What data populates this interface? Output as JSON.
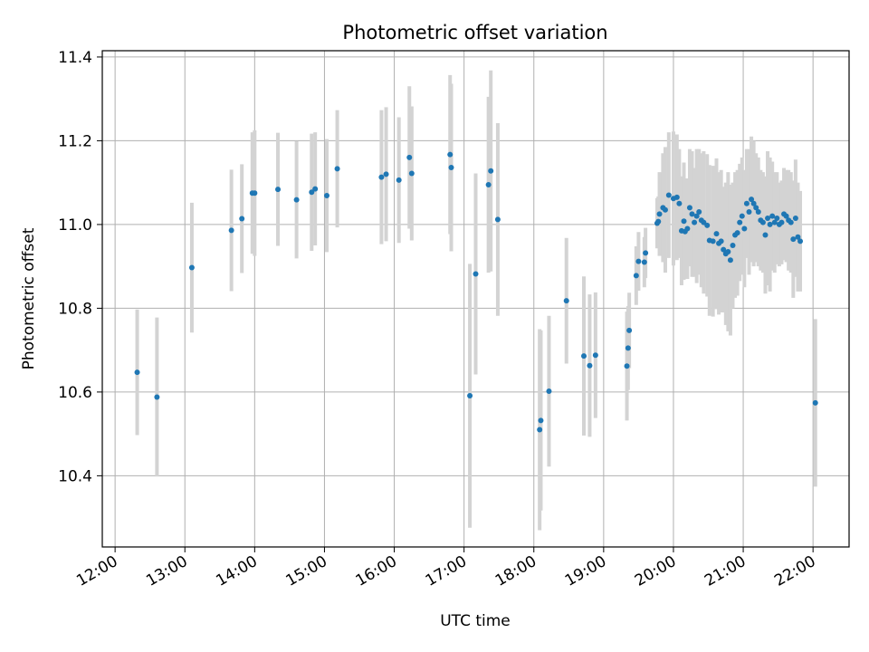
{
  "chart_data": {
    "type": "scatter",
    "title": "Photometric offset variation",
    "xlabel": "UTC time",
    "ylabel": "Photometric offset",
    "x_axis_type": "time",
    "x_tick_labels": [
      "12:00",
      "13:00",
      "14:00",
      "15:00",
      "16:00",
      "17:00",
      "18:00",
      "19:00",
      "20:00",
      "21:00",
      "22:00"
    ],
    "xlim": [
      "11:49",
      "22:31"
    ],
    "ylim": [
      10.23,
      11.415
    ],
    "yticks": [
      10.4,
      10.6,
      10.8,
      11.0,
      11.2,
      11.4
    ],
    "grid": true,
    "colors": {
      "point": "#1f77b4",
      "errorbar": "#d3d3d3",
      "grid": "#b0b0b0"
    },
    "series": [
      {
        "x": [
          "12:19",
          "12:36",
          "13:06",
          "13:40",
          "13:49",
          "13:58",
          "14:00",
          "14:20",
          "14:36",
          "14:49",
          "14:52",
          "15:02",
          "15:11",
          "15:49",
          "15:53",
          "16:04",
          "16:13",
          "16:15",
          "16:48",
          "16:49",
          "17:05",
          "17:10",
          "17:21",
          "17:23",
          "17:29",
          "18:05",
          "18:06",
          "18:13",
          "18:28",
          "18:43",
          "18:48",
          "18:53",
          "19:20",
          "19:21",
          "19:22",
          "19:28",
          "19:30",
          "19:35",
          "19:36",
          "19:46",
          "19:47",
          "19:48",
          "19:51",
          "19:53",
          "19:56",
          "20:00",
          "20:03",
          "20:05",
          "20:07",
          "20:09",
          "20:10",
          "20:12",
          "20:14",
          "20:16",
          "20:18",
          "20:20",
          "20:22",
          "20:24",
          "20:26",
          "20:29",
          "20:31",
          "20:34",
          "20:37",
          "20:39",
          "20:41",
          "20:43",
          "20:45",
          "20:47",
          "20:49",
          "20:51",
          "20:53",
          "20:55",
          "20:57",
          "20:59",
          "21:01",
          "21:03",
          "21:05",
          "21:07",
          "21:09",
          "21:11",
          "21:13",
          "21:15",
          "21:17",
          "21:19",
          "21:21",
          "21:23",
          "21:25",
          "21:27",
          "21:29",
          "21:31",
          "21:33",
          "21:35",
          "21:37",
          "21:39",
          "21:41",
          "21:43",
          "21:45",
          "21:47",
          "21:49",
          "22:02"
        ],
        "y": [
          10.647,
          10.588,
          10.897,
          10.986,
          11.014,
          11.075,
          11.075,
          11.084,
          11.059,
          11.077,
          11.085,
          11.069,
          11.133,
          11.113,
          11.12,
          11.106,
          11.16,
          11.122,
          11.167,
          11.136,
          10.591,
          10.882,
          11.095,
          11.128,
          11.012,
          10.51,
          10.532,
          10.602,
          10.818,
          10.686,
          10.663,
          10.688,
          10.662,
          10.705,
          10.747,
          10.878,
          10.912,
          10.91,
          10.932,
          11.003,
          11.007,
          11.025,
          11.04,
          11.035,
          11.07,
          11.062,
          11.065,
          11.05,
          10.985,
          11.008,
          10.983,
          10.99,
          11.04,
          11.025,
          11.005,
          11.02,
          11.03,
          11.01,
          11.005,
          10.998,
          10.962,
          10.96,
          10.978,
          10.955,
          10.96,
          10.94,
          10.93,
          10.935,
          10.915,
          10.95,
          10.975,
          10.98,
          11.005,
          11.02,
          10.99,
          11.05,
          11.03,
          11.06,
          11.05,
          11.04,
          11.03,
          11.01,
          11.005,
          10.975,
          11.015,
          11.0,
          11.02,
          11.005,
          11.015,
          11.0,
          11.005,
          11.025,
          11.02,
          11.01,
          11.005,
          10.965,
          11.015,
          10.97,
          10.96,
          10.574
        ],
        "err": [
          0.15,
          0.19,
          0.155,
          0.145,
          0.13,
          0.145,
          0.15,
          0.135,
          0.14,
          0.14,
          0.135,
          0.135,
          0.14,
          0.16,
          0.16,
          0.15,
          0.17,
          0.16,
          0.19,
          0.2,
          0.315,
          0.24,
          0.21,
          0.24,
          0.23,
          0.24,
          0.215,
          0.18,
          0.15,
          0.19,
          0.17,
          0.15,
          0.13,
          0.1,
          0.09,
          0.07,
          0.07,
          0.06,
          0.06,
          0.06,
          0.06,
          0.1,
          0.13,
          0.15,
          0.15,
          0.16,
          0.15,
          0.13,
          0.13,
          0.14,
          0.11,
          0.12,
          0.14,
          0.15,
          0.13,
          0.16,
          0.15,
          0.16,
          0.17,
          0.17,
          0.18,
          0.18,
          0.18,
          0.17,
          0.17,
          0.15,
          0.17,
          0.19,
          0.18,
          0.15,
          0.15,
          0.15,
          0.14,
          0.14,
          0.14,
          0.13,
          0.15,
          0.15,
          0.15,
          0.13,
          0.13,
          0.12,
          0.12,
          0.14,
          0.16,
          0.16,
          0.13,
          0.12,
          0.11,
          0.1,
          0.1,
          0.11,
          0.11,
          0.12,
          0.12,
          0.14,
          0.14,
          0.13,
          0.12,
          0.2
        ]
      }
    ]
  }
}
